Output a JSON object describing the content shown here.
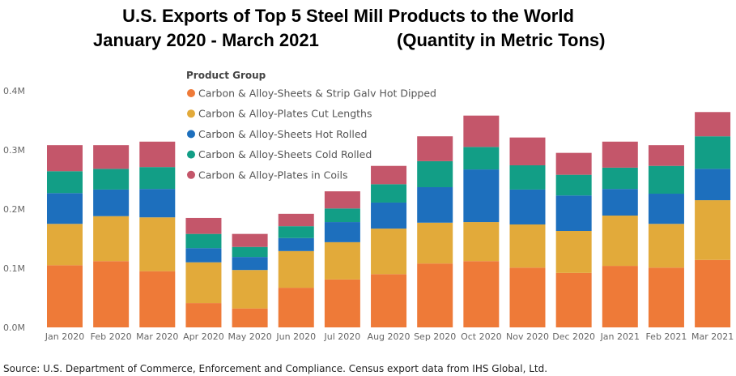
{
  "chart_data": {
    "type": "bar",
    "stacked": true,
    "title_line1": "U.S. Exports of Top 5 Steel Mill Products to the World",
    "title_line2_left": "January 2020 - March 2021",
    "title_line2_right": "(Quantity in Metric Tons)",
    "legend_title": "Product Group",
    "legend_placement": "top-center",
    "grid": false,
    "ylim": [
      0,
      400000
    ],
    "yticks": [
      0,
      100000,
      200000,
      300000,
      400000
    ],
    "ytick_labels": [
      "0.0M",
      "0.1M",
      "0.2M",
      "0.3M",
      "0.4M"
    ],
    "categories": [
      "Jan 2020",
      "Feb 2020",
      "Mar 2020",
      "Apr 2020",
      "May 2020",
      "Jun 2020",
      "Jul 2020",
      "Aug 2020",
      "Sep 2020",
      "Oct 2020",
      "Nov 2020",
      "Dec 2020",
      "Jan 2021",
      "Feb 2021",
      "Mar 2021"
    ],
    "series": [
      {
        "name": "Carbon & Alloy-Sheets & Strip Galv Hot Dipped",
        "color": "#EE7A38",
        "values": [
          105000,
          112000,
          95000,
          41000,
          32000,
          67000,
          81000,
          90000,
          108000,
          112000,
          101000,
          92000,
          104000,
          101000,
          114000
        ]
      },
      {
        "name": "Carbon & Alloy-Plates Cut Lengths",
        "color": "#E2AA3A",
        "values": [
          70000,
          76000,
          91000,
          69000,
          65000,
          62000,
          63000,
          77000,
          69000,
          66000,
          73000,
          71000,
          85000,
          74000,
          101000
        ]
      },
      {
        "name": "Carbon & Alloy-Sheets Hot Rolled",
        "color": "#1D6FBD",
        "values": [
          52000,
          45000,
          48000,
          24000,
          22000,
          22000,
          34000,
          44000,
          60000,
          89000,
          59000,
          60000,
          45000,
          51000,
          53000
        ]
      },
      {
        "name": "Carbon & Alloy-Sheets Cold Rolled",
        "color": "#129E86",
        "values": [
          37000,
          35000,
          37000,
          24000,
          17000,
          20000,
          23000,
          31000,
          44000,
          38000,
          41000,
          35000,
          36000,
          47000,
          55000
        ]
      },
      {
        "name": "Carbon & Alloy-Plates in Coils",
        "color": "#C4566A",
        "values": [
          44000,
          40000,
          43000,
          27000,
          22000,
          21000,
          29000,
          31000,
          42000,
          53000,
          47000,
          37000,
          44000,
          35000,
          41000
        ]
      }
    ]
  },
  "source": "Source: U.S. Department of Commerce, Enforcement and Compliance. Census export data from IHS Global, Ltd."
}
